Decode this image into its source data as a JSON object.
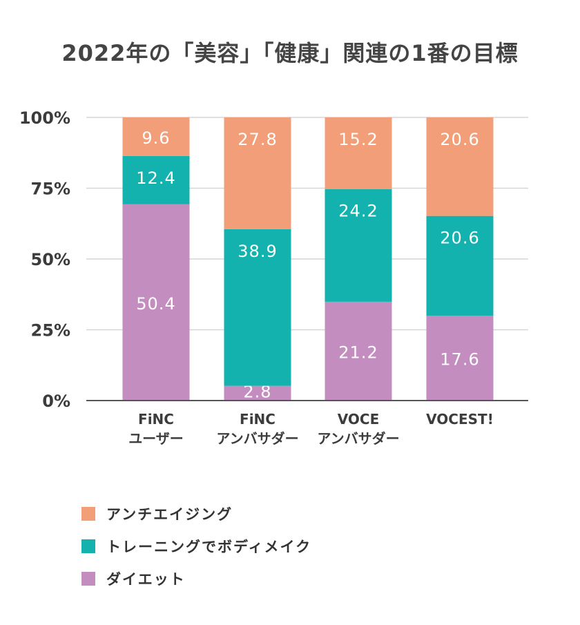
{
  "chart_data": {
    "type": "bar",
    "stacked": true,
    "title": "2022年の「美容」「健康」関連の1番の目標",
    "categories": [
      [
        "FiNC",
        "ユーザー"
      ],
      [
        "FiNC",
        "アンバサダー"
      ],
      [
        "VOCE",
        "アンバサダー"
      ],
      [
        "VOCEST!"
      ]
    ],
    "series": [
      {
        "name": "ダイエット",
        "color": "#c38dbf",
        "values": [
          50.4,
          2.8,
          21.2,
          17.6
        ]
      },
      {
        "name": "トレーニングでボディメイク",
        "color": "#13b2ae",
        "values": [
          12.4,
          38.9,
          24.2,
          20.6
        ]
      },
      {
        "name": "アンチエイジング",
        "color": "#f29e78",
        "values": [
          9.6,
          27.8,
          15.2,
          20.6
        ]
      }
    ],
    "stack_heights_percent": [
      [
        69.3,
        5.2,
        34.9,
        30.0
      ],
      [
        17.1,
        55.3,
        39.8,
        35.2
      ],
      [
        13.6,
        39.5,
        25.3,
        34.8
      ]
    ],
    "yticks": [
      "0%",
      "25%",
      "50%",
      "75%",
      "100%"
    ],
    "ylim": [
      0,
      100
    ],
    "grid": true,
    "legend_position": "bottom-left",
    "legend_order": [
      "アンチエイジング",
      "トレーニングでボディメイク",
      "ダイエット"
    ]
  }
}
